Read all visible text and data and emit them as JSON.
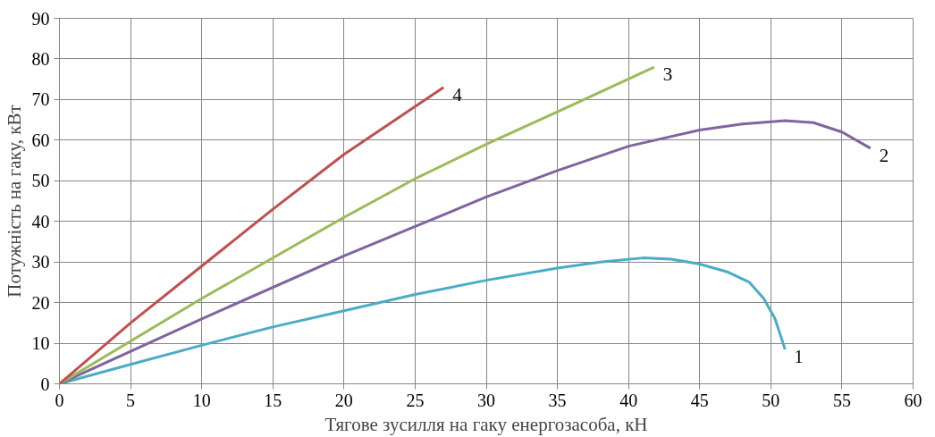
{
  "chart_data": {
    "type": "line",
    "xlabel": "Тягове зусилля на гаку енергозасоба, кН",
    "ylabel": "Потужність на гаку, кВт",
    "xlim": [
      0,
      60
    ],
    "xticks": [
      0,
      5,
      10,
      15,
      20,
      25,
      30,
      35,
      40,
      45,
      50,
      55,
      60
    ],
    "ylim": [
      0,
      90
    ],
    "yticks": [
      0,
      10,
      20,
      30,
      40,
      50,
      60,
      70,
      80,
      90
    ],
    "grid": true,
    "marker": "none",
    "line_style": "solid",
    "series": [
      {
        "name": "1",
        "color": "#4bacc6",
        "x": [
          0,
          5,
          10,
          15,
          20,
          25,
          30,
          35,
          38,
          41,
          43,
          45,
          47,
          48.5,
          49.5,
          50.3,
          51
        ],
        "values": [
          0,
          4.8,
          9.5,
          14,
          18,
          22,
          25.5,
          28.5,
          30,
          31,
          30.7,
          29.5,
          27.5,
          25,
          21,
          16,
          8.5
        ]
      },
      {
        "name": "2",
        "color": "#8064a2",
        "x": [
          0,
          10,
          20,
          30,
          35,
          40,
          45,
          48,
          51,
          53,
          55,
          57
        ],
        "values": [
          0,
          16,
          31.5,
          46,
          52.5,
          58.5,
          62.5,
          64,
          64.8,
          64.3,
          62,
          58
        ]
      },
      {
        "name": "3",
        "color": "#9bbb59",
        "x": [
          0,
          10,
          20,
          25,
          30,
          35,
          41.8
        ],
        "values": [
          0,
          21,
          41,
          50.5,
          59,
          67,
          78
        ]
      },
      {
        "name": "4",
        "color": "#c0504d",
        "x": [
          0,
          5,
          10,
          15,
          20,
          27
        ],
        "values": [
          0,
          15,
          29,
          43,
          56.5,
          73
        ]
      }
    ]
  }
}
